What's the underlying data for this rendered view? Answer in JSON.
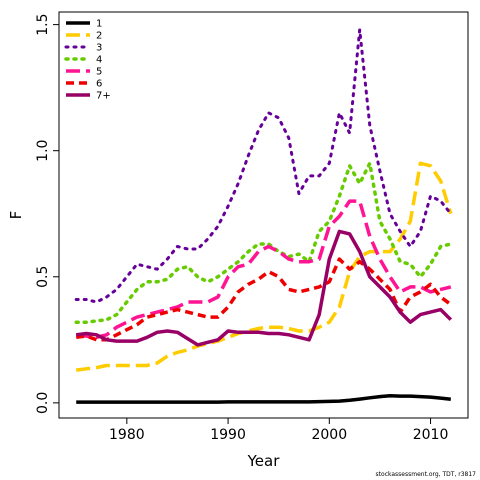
{
  "chart_data": {
    "type": "line",
    "title": "",
    "xlabel": "Year",
    "ylabel": "F",
    "xlim": [
      1973.3,
      2013.7
    ],
    "ylim": [
      -0.06,
      1.55
    ],
    "x_ticks": [
      1980,
      1990,
      2000,
      2010
    ],
    "y_ticks": [
      0.0,
      0.5,
      1.0,
      1.5
    ],
    "y_tick_labels": [
      "0.0",
      "0.5",
      "1.0",
      "1.5"
    ],
    "grid": false,
    "legend_position": "top-left",
    "credit": "stockassessment.org, TDT, r3817",
    "years": [
      1975,
      1976,
      1977,
      1978,
      1979,
      1980,
      1981,
      1982,
      1983,
      1984,
      1985,
      1986,
      1987,
      1988,
      1989,
      1990,
      1991,
      1992,
      1993,
      1994,
      1995,
      1996,
      1997,
      1998,
      1999,
      2000,
      2001,
      2002,
      2003,
      2004,
      2005,
      2006,
      2007,
      2008,
      2009,
      2010,
      2011,
      2012
    ],
    "series": [
      {
        "name": "1",
        "color": "#000000",
        "dash": "solid",
        "width": 3.5,
        "values": [
          0.003,
          0.003,
          0.003,
          0.003,
          0.003,
          0.003,
          0.003,
          0.003,
          0.003,
          0.003,
          0.003,
          0.003,
          0.003,
          0.003,
          0.003,
          0.004,
          0.004,
          0.004,
          0.004,
          0.004,
          0.004,
          0.004,
          0.004,
          0.004,
          0.005,
          0.006,
          0.007,
          0.01,
          0.015,
          0.02,
          0.025,
          0.028,
          0.027,
          0.027,
          0.025,
          0.023,
          0.019,
          0.014
        ]
      },
      {
        "name": "2",
        "color": "#ffcc00",
        "dash": "long",
        "width": 3.5,
        "values": [
          0.13,
          0.135,
          0.14,
          0.148,
          0.148,
          0.148,
          0.148,
          0.148,
          0.158,
          0.185,
          0.2,
          0.21,
          0.225,
          0.235,
          0.245,
          0.26,
          0.275,
          0.285,
          0.295,
          0.3,
          0.3,
          0.295,
          0.285,
          0.285,
          0.3,
          0.32,
          0.38,
          0.52,
          0.58,
          0.6,
          0.6,
          0.6,
          0.65,
          0.72,
          0.95,
          0.94,
          0.88,
          0.75
        ]
      },
      {
        "name": "3",
        "color": "#660099",
        "dash": "dot",
        "width": 3,
        "values": [
          0.41,
          0.41,
          0.4,
          0.42,
          0.45,
          0.5,
          0.55,
          0.54,
          0.53,
          0.57,
          0.62,
          0.61,
          0.61,
          0.65,
          0.7,
          0.78,
          0.87,
          0.98,
          1.08,
          1.15,
          1.13,
          1.05,
          0.83,
          0.9,
          0.9,
          0.95,
          1.15,
          1.07,
          1.48,
          1.1,
          0.92,
          0.75,
          0.68,
          0.62,
          0.68,
          0.82,
          0.8,
          0.75
        ]
      },
      {
        "name": "4",
        "color": "#66cc00",
        "dash": "dot",
        "width": 3.5,
        "values": [
          0.32,
          0.32,
          0.325,
          0.33,
          0.35,
          0.4,
          0.45,
          0.48,
          0.48,
          0.49,
          0.53,
          0.54,
          0.5,
          0.48,
          0.5,
          0.53,
          0.56,
          0.6,
          0.63,
          0.63,
          0.6,
          0.58,
          0.59,
          0.56,
          0.68,
          0.72,
          0.82,
          0.94,
          0.87,
          0.95,
          0.72,
          0.65,
          0.56,
          0.55,
          0.5,
          0.55,
          0.62,
          0.63
        ]
      },
      {
        "name": "5",
        "color": "#ff1493",
        "dash": "long",
        "width": 3.5,
        "values": [
          0.27,
          0.265,
          0.26,
          0.27,
          0.3,
          0.32,
          0.34,
          0.35,
          0.36,
          0.37,
          0.38,
          0.4,
          0.4,
          0.4,
          0.42,
          0.5,
          0.54,
          0.55,
          0.6,
          0.62,
          0.6,
          0.57,
          0.56,
          0.56,
          0.57,
          0.7,
          0.74,
          0.8,
          0.8,
          0.66,
          0.57,
          0.5,
          0.44,
          0.46,
          0.46,
          0.44,
          0.45,
          0.46
        ]
      },
      {
        "name": "6",
        "color": "#ee0000",
        "dash": "dash",
        "width": 3.5,
        "values": [
          0.26,
          0.265,
          0.25,
          0.25,
          0.27,
          0.29,
          0.31,
          0.34,
          0.35,
          0.36,
          0.37,
          0.36,
          0.35,
          0.34,
          0.34,
          0.38,
          0.44,
          0.47,
          0.49,
          0.52,
          0.5,
          0.45,
          0.44,
          0.45,
          0.46,
          0.48,
          0.57,
          0.53,
          0.56,
          0.53,
          0.49,
          0.45,
          0.36,
          0.42,
          0.44,
          0.47,
          0.42,
          0.39
        ]
      },
      {
        "name": "7+",
        "color": "#990066",
        "dash": "solid",
        "width": 3.5,
        "values": [
          0.27,
          0.275,
          0.27,
          0.25,
          0.245,
          0.245,
          0.245,
          0.26,
          0.28,
          0.285,
          0.28,
          0.255,
          0.23,
          0.24,
          0.25,
          0.285,
          0.28,
          0.28,
          0.28,
          0.275,
          0.275,
          0.27,
          0.26,
          0.25,
          0.35,
          0.57,
          0.68,
          0.67,
          0.6,
          0.5,
          0.46,
          0.42,
          0.36,
          0.32,
          0.35,
          0.36,
          0.37,
          0.33
        ]
      }
    ]
  }
}
